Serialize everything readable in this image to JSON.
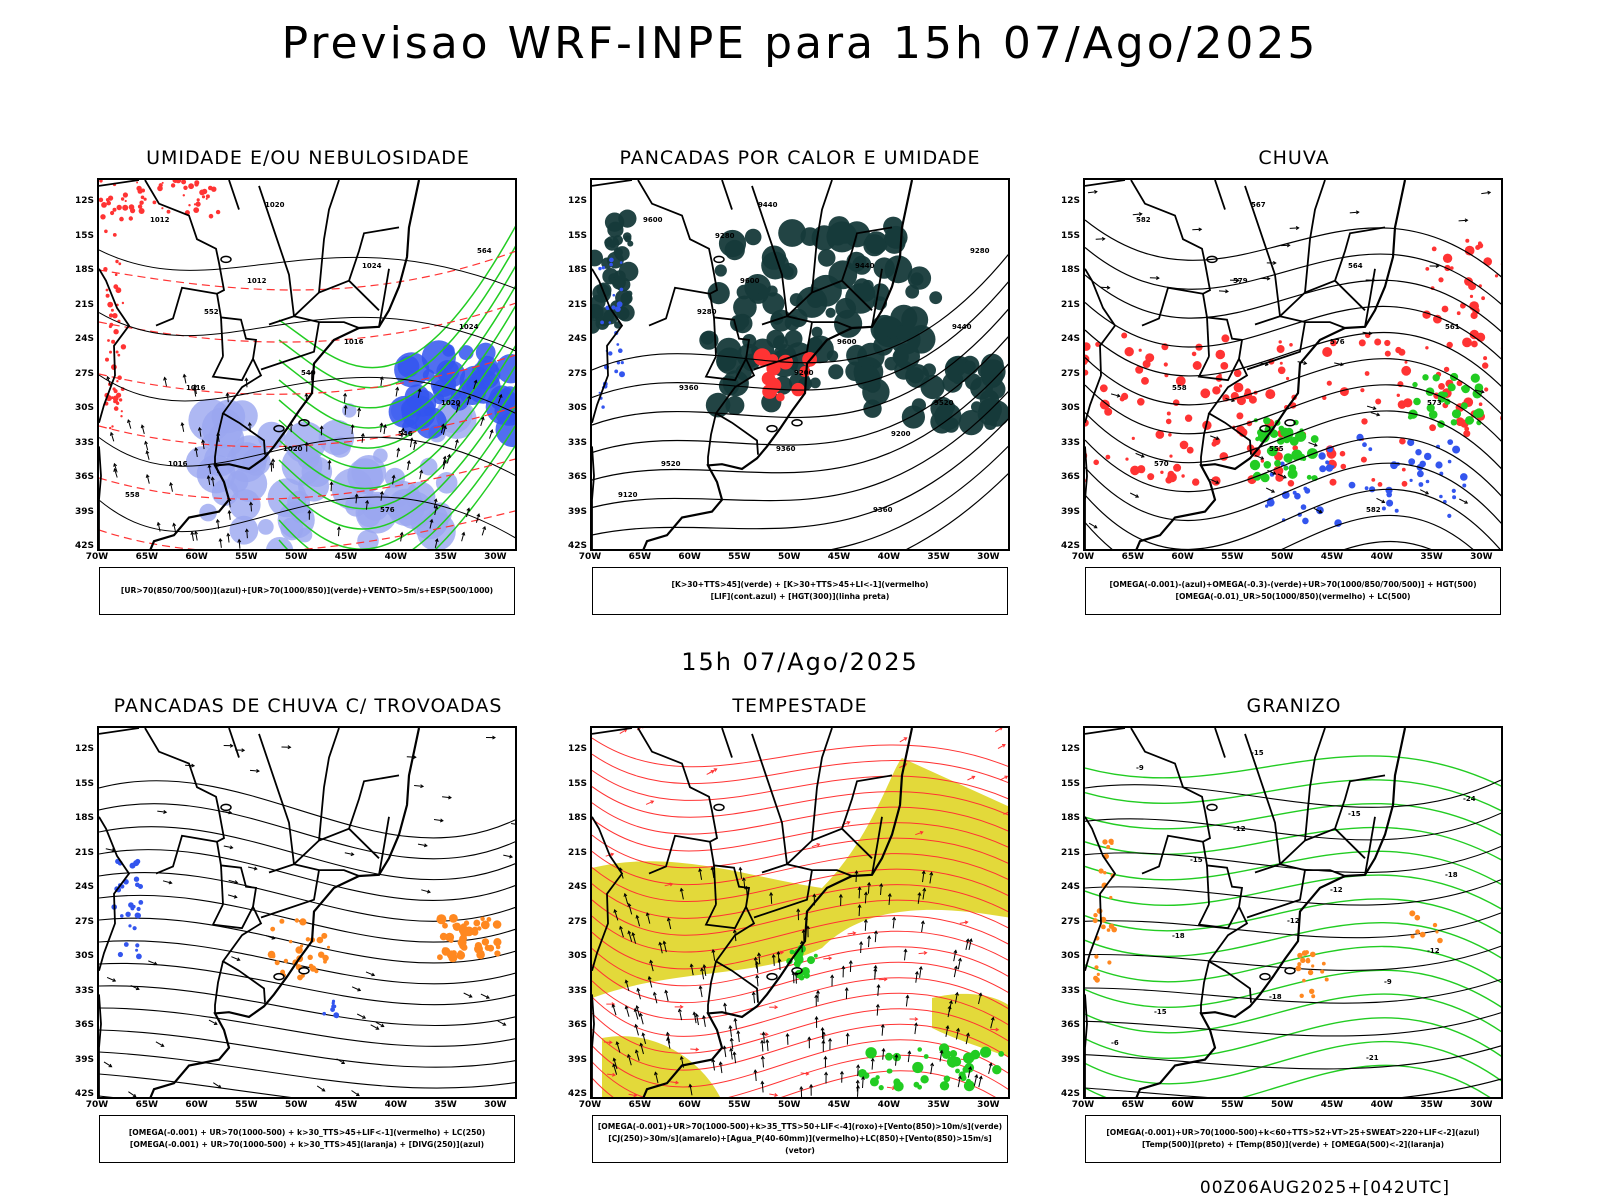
{
  "title": "Previsao WRF-INPE  para 15h 07/Ago/2025",
  "mid_title": "15h 07/Ago/2025",
  "footer": "00Z06AUG2025+[042UTC]",
  "lat_ticks": [
    "12S",
    "15S",
    "18S",
    "21S",
    "24S",
    "27S",
    "30S",
    "33S",
    "36S",
    "39S",
    "42S"
  ],
  "lon_ticks": [
    "70W",
    "65W",
    "60W",
    "55W",
    "50W",
    "45W",
    "40W",
    "35W",
    "30W"
  ],
  "panels": [
    {
      "title": "UMIDADE E/OU NEBULOSIDADE",
      "legend": [
        "[UR>70(850/700/500)](azul)+[UR>70(1000/850)](verde)+VENTO>5m/s+ESP(500/1000)"
      ],
      "contour_labels": [
        "1012",
        "1012",
        "1016",
        "1020",
        "1016",
        "1020",
        "1024",
        "1024",
        "1016",
        "1020",
        "576",
        "564",
        "552",
        "540",
        "546",
        "558"
      ]
    },
    {
      "title": "PANCADAS POR CALOR E UMIDADE",
      "legend": [
        "[K>30+TTS>45](verde) + [K>30+TTS>45+LI<-1](vermelho)",
        "[LIF](cont.azul) + [HGT(300)](linha preta)"
      ],
      "contour_labels": [
        "9600",
        "9600",
        "9600",
        "9520",
        "9520",
        "9440",
        "9440",
        "9440",
        "9360",
        "9360",
        "9360",
        "9280",
        "9280",
        "9200",
        "9200",
        "9120",
        "9280"
      ]
    },
    {
      "title": "CHUVA",
      "legend": [
        "[OMEGA(-0.001)-(azul)+OMEGA(-0.3)-(verde)+UR>70(1000/850/700/500)] + HGT(500)",
        "[OMEGA(-0.01)_UR>50(1000/850)(vermelho) + LC(500)"
      ],
      "contour_labels": [
        "582",
        "579",
        "576",
        "573",
        "570",
        "567",
        "564",
        "561",
        "558",
        "555",
        "582"
      ]
    },
    {
      "title": "PANCADAS DE CHUVA C/ TROVOADAS",
      "legend": [
        "[OMEGA(-0.001) + UR>70(1000-500) + k>30_TTS>45+LIF<-1](vermelho) + LC(250)",
        "[OMEGA(-0.001) + UR>70(1000-500) + k>30_TTS>45](laranja) + [DIVG(250)](azul)"
      ],
      "contour_labels": []
    },
    {
      "title": "TEMPESTADE",
      "legend": [
        "[OMEGA(-0.001)+UR>70(1000-500)+k>35_TTS>50+LIF<-4](roxo)+[Vento(850)>10m/s](verde)",
        "[CJ(250)>30m/s](amarelo)+[Agua_P(40-60mm)](vermelho)+LC(850)+[Vento(850)>15m/s](vetor)"
      ],
      "contour_labels": []
    },
    {
      "title": "GRANIZO",
      "legend": [
        "[OMEGA(-0.001)+UR>70(1000-500)+k<60+TTS>52+VT>25+SWEAT>220+LIF<-2](azul)",
        "[Temp(500)](preto) + [Temp(850)](verde) + [OMEGA(500)<-2](laranja)"
      ],
      "contour_labels": [
        "-9",
        "-12",
        "-12",
        "-12",
        "-15",
        "-15",
        "-15",
        "-18",
        "-18",
        "-18",
        "-21",
        "-24",
        "-15",
        "-12",
        "-9",
        "-6"
      ]
    }
  ],
  "colors": {
    "blue": "#3355ee",
    "lightblue": "#9aa6f0",
    "green": "#22cc22",
    "red": "#ff3333",
    "darkteal": "#163a3a",
    "yellow": "#e3d93a",
    "orange": "#ff8820",
    "black": "#000000"
  }
}
